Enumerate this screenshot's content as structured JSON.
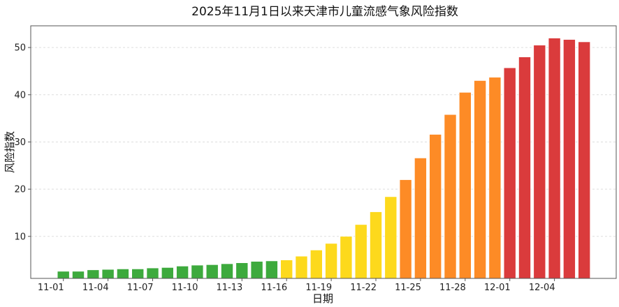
{
  "chart_data": {
    "type": "bar",
    "title": "2025年11月1日以来天津市儿童流感气象风险指数",
    "xlabel": "日期",
    "ylabel": "风险指数",
    "categories": [
      "11-01",
      "11-02",
      "11-03",
      "11-04",
      "11-05",
      "11-06",
      "11-07",
      "11-08",
      "11-09",
      "11-10",
      "11-11",
      "11-12",
      "11-13",
      "11-14",
      "11-15",
      "11-16",
      "11-17",
      "11-18",
      "11-19",
      "11-20",
      "11-21",
      "11-22",
      "11-23",
      "11-24",
      "11-25",
      "11-26",
      "11-27",
      "11-28",
      "11-29",
      "11-30",
      "12-01",
      "12-02",
      "12-03",
      "12-04",
      "12-05",
      "12-06"
    ],
    "values": [
      2.6,
      2.6,
      2.9,
      3.0,
      3.1,
      3.1,
      3.3,
      3.4,
      3.7,
      3.9,
      4.0,
      4.2,
      4.4,
      4.7,
      4.8,
      5.0,
      5.8,
      7.1,
      8.5,
      10.0,
      12.5,
      15.2,
      18.4,
      22.0,
      26.6,
      31.6,
      35.8,
      40.5,
      43.0,
      43.7,
      45.7,
      48.0,
      50.5,
      52.0,
      51.7,
      51.2
    ],
    "bar_colors": [
      "#3daa3d",
      "#3daa3d",
      "#3daa3d",
      "#3daa3d",
      "#3daa3d",
      "#3daa3d",
      "#3daa3d",
      "#3daa3d",
      "#3daa3d",
      "#3daa3d",
      "#3daa3d",
      "#3daa3d",
      "#3daa3d",
      "#3daa3d",
      "#3daa3d",
      "#fdd91c",
      "#fdd91c",
      "#fdd91c",
      "#fdd91c",
      "#fdd91c",
      "#fdd91c",
      "#fdd91c",
      "#fdd91c",
      "#fd8b26",
      "#fd8b26",
      "#fd8b26",
      "#fd8b26",
      "#fd8b26",
      "#fd8b26",
      "#fd8b26",
      "#da3b3c",
      "#da3b3c",
      "#da3b3c",
      "#da3b3c",
      "#da3b3c",
      "#da3b3c"
    ],
    "xtick_labels": [
      "11-01",
      "11-04",
      "11-07",
      "11-10",
      "11-13",
      "11-16",
      "11-19",
      "11-22",
      "11-25",
      "11-28",
      "12-01",
      "12-04"
    ],
    "yticks": [
      10,
      20,
      30,
      40,
      50
    ],
    "ylim": [
      1.1,
      54.6
    ],
    "grid": "horizontal dashed"
  }
}
